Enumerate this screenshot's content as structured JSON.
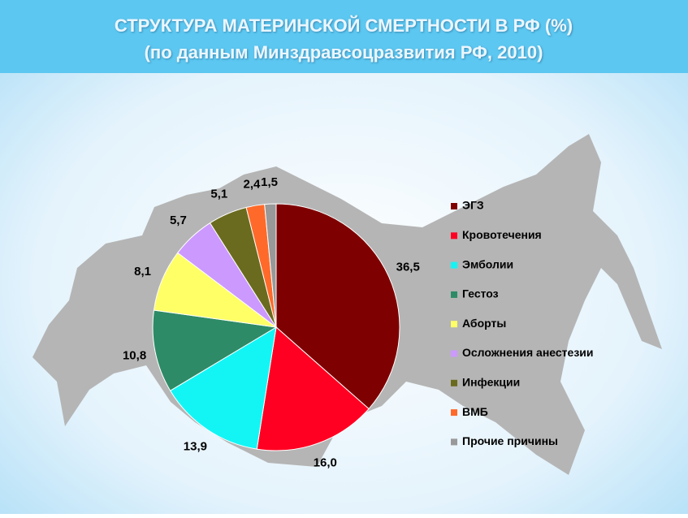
{
  "chart_data": {
    "type": "pie",
    "title": "СТРУКТУРА МАТЕРИНСКОЙ СМЕРТНОСТИ В РФ (%)",
    "subtitle": "(по данным Минздравсоцразвития РФ, 2010)",
    "legend": "right",
    "categories": [
      "ЭГЗ",
      "Кровотечения",
      "Эмболии",
      "Гестоз",
      "Аборты",
      "Осложнения анестезии",
      "Инфекции",
      "ВМБ",
      "Прочие причины"
    ],
    "values": [
      36.5,
      16.0,
      13.9,
      10.8,
      8.1,
      5.7,
      5.1,
      2.4,
      1.5
    ],
    "value_labels": [
      "36,5",
      "16,0",
      "13,9",
      "10,8",
      "8,1",
      "5,7",
      "5,1",
      "2,4",
      "1,5"
    ],
    "colors": [
      "#7f0000",
      "#ff0022",
      "#13f5f5",
      "#2e8b67",
      "#ffff66",
      "#cc99ff",
      "#6b6b1f",
      "#ff6a2a",
      "#999999"
    ]
  }
}
